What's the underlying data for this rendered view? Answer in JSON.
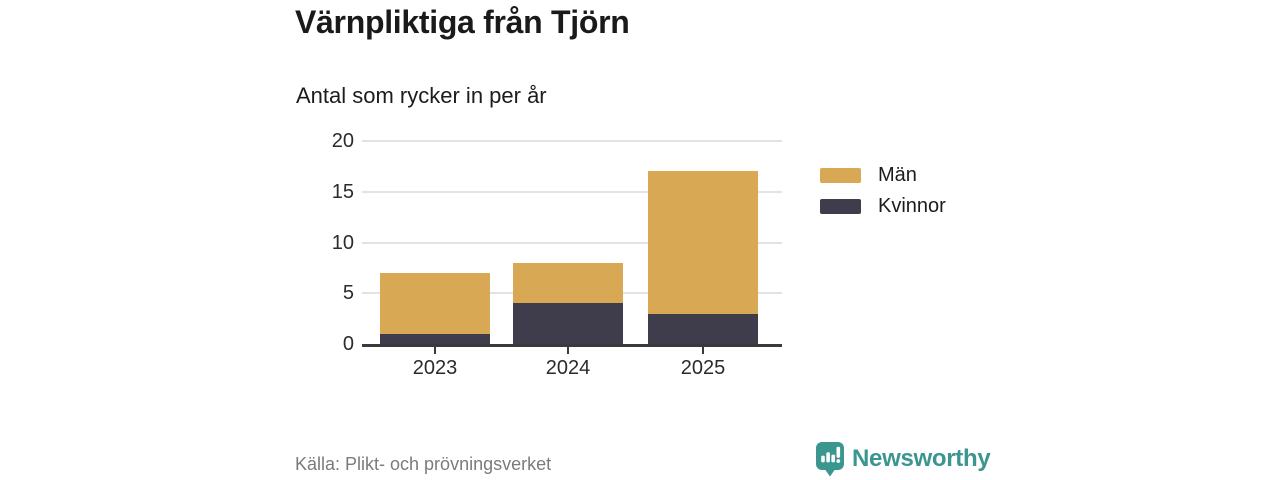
{
  "header": {
    "title": "Värnpliktiga från Tjörn",
    "subtitle": "Antal som rycker in per år"
  },
  "chart_data": {
    "type": "bar",
    "stacked": true,
    "title": "Värnpliktiga från Tjörn",
    "subtitle": "Antal som rycker in per år",
    "categories": [
      "2023",
      "2024",
      "2025"
    ],
    "series": [
      {
        "name": "Män",
        "color": "#D9A854",
        "values": [
          6,
          4,
          14
        ],
        "stack_position": "top"
      },
      {
        "name": "Kvinnor",
        "color": "#3F3C4C",
        "values": [
          1,
          4,
          3
        ],
        "stack_position": "bottom"
      }
    ],
    "totals": [
      7,
      8,
      17
    ],
    "xlabel": "",
    "ylabel": "",
    "ylim": [
      0,
      20
    ],
    "yticks": [
      0,
      5,
      10,
      15,
      20
    ],
    "grid": "horizontal",
    "legend_position": "right"
  },
  "footer": {
    "source": "Källa: Plikt- och prövningsverket",
    "brand": "Newsworthy"
  },
  "colors": {
    "men_gold": "#D9A854",
    "women_dark": "#3F3C4C",
    "brand_teal": "#3A968F",
    "gridline": "#E3E3E3",
    "baseline": "#3A3A3A",
    "axis_text": "#2B2B2B",
    "source_text": "#7B7B7B"
  }
}
